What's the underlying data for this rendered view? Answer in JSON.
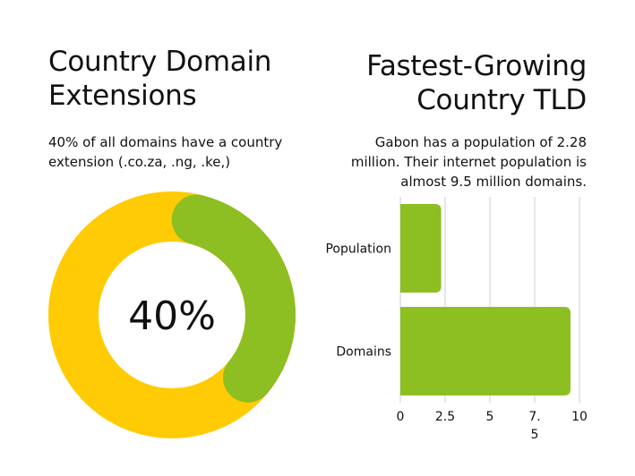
{
  "left": {
    "title_line1": "Country Domain",
    "title_line2": "Extensions",
    "subtitle_line1": "40% of all domains have a country",
    "subtitle_line2": "extension (.co.za, .ng, .ke,)"
  },
  "right": {
    "title_line1": "Fastest-Growing",
    "title_line2": "Country TLD",
    "subtitle_line1": "Gabon has a population of 2.28",
    "subtitle_line2": "million. Their internet population is",
    "subtitle_line3": "almost 9.5 million domains."
  },
  "colors": {
    "green": "#8DBE22",
    "yellow": "#FFCB05",
    "grid": "#cccccc"
  },
  "chart_data": [
    {
      "type": "pie",
      "style": "donut",
      "center_label": "40%",
      "slices": [
        {
          "value": 40,
          "color": "#8DBE22"
        },
        {
          "value": 60,
          "color": "#FFCB05"
        }
      ]
    },
    {
      "type": "bar",
      "orientation": "horizontal",
      "categories": [
        "Population",
        "Domains"
      ],
      "values": [
        2.28,
        9.5
      ],
      "xlim": [
        0,
        10
      ],
      "xticks": [
        "0",
        "2.5",
        "5",
        "7.\n5",
        "10"
      ],
      "grid": true,
      "color": "#8DBE22"
    }
  ]
}
